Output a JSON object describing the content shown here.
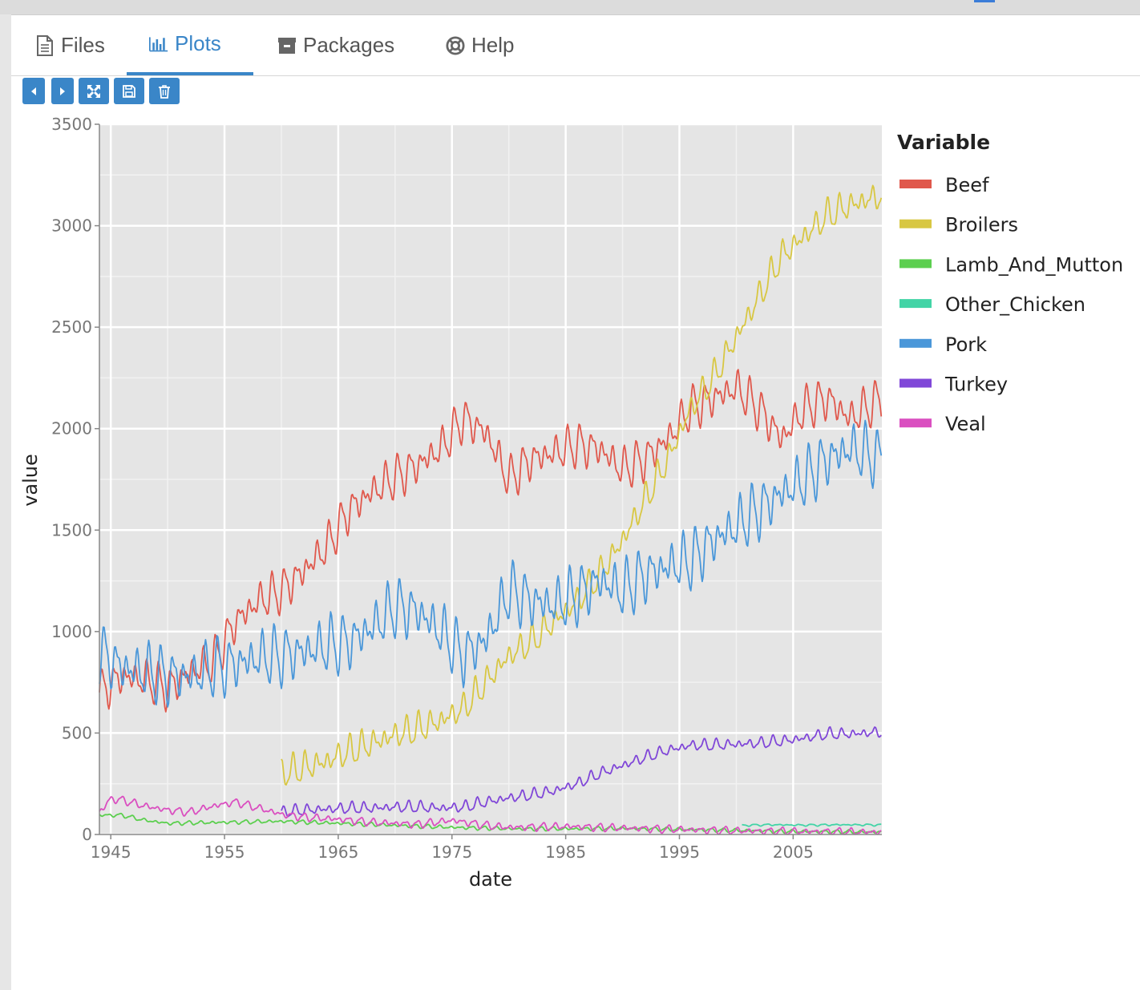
{
  "tabs": [
    {
      "label": "Files",
      "icon": "file-icon",
      "active": false
    },
    {
      "label": "Plots",
      "icon": "bar-chart-icon",
      "active": true
    },
    {
      "label": "Packages",
      "icon": "package-icon",
      "active": false
    },
    {
      "label": "Help",
      "icon": "lifebuoy-icon",
      "active": false
    }
  ],
  "toolbar": {
    "buttons": [
      "previous-plot",
      "next-plot",
      "zoom-expand",
      "save-plot",
      "delete-plot"
    ]
  },
  "colors": {
    "accent": "#3a86c8",
    "panel_bg": "#e5e5e5",
    "grid": "#ffffff"
  },
  "chart_data": {
    "type": "line",
    "xlabel": "date",
    "ylabel": "value",
    "legend_title": "Variable",
    "legend_position": "right",
    "grid": true,
    "x_ticks": [
      "1945",
      "1955",
      "1965",
      "1975",
      "1985",
      "1995",
      "2005"
    ],
    "y_ticks": [
      "0",
      "500",
      "1000",
      "1500",
      "2000",
      "2500",
      "3000",
      "3500"
    ],
    "xlim": [
      1944,
      2012.8
    ],
    "ylim": [
      0,
      3500
    ],
    "series": [
      {
        "name": "Beef",
        "color": "#e0584c",
        "x": [
          1944,
          1946,
          1948,
          1950,
          1952,
          1954,
          1956,
          1958,
          1960,
          1962,
          1964,
          1966,
          1968,
          1970,
          1972,
          1974,
          1976,
          1978,
          1980,
          1982,
          1984,
          1986,
          1988,
          1990,
          1992,
          1994,
          1996,
          1998,
          2000,
          2002,
          2004,
          2006,
          2008,
          2010,
          2012.8
        ],
        "values": [
          700,
          780,
          760,
          720,
          800,
          850,
          1050,
          1150,
          1200,
          1300,
          1420,
          1600,
          1690,
          1760,
          1820,
          1900,
          2050,
          1980,
          1750,
          1850,
          1880,
          1920,
          1900,
          1800,
          1850,
          1950,
          2100,
          2150,
          2200,
          2100,
          1950,
          2100,
          2150,
          2050,
          2150
        ],
        "amplitude": 110
      },
      {
        "name": "Broilers",
        "color": "#d8c742",
        "x": [
          1960,
          1962,
          1964,
          1966,
          1968,
          1970,
          1972,
          1974,
          1976,
          1978,
          1980,
          1982,
          1984,
          1986,
          1988,
          1990,
          1992,
          1994,
          1996,
          1998,
          2000,
          2002,
          2004,
          2006,
          2008,
          2010,
          2012.8
        ],
        "values": [
          300,
          330,
          360,
          410,
          450,
          490,
          520,
          560,
          620,
          750,
          880,
          950,
          1050,
          1150,
          1280,
          1450,
          1650,
          1850,
          2100,
          2250,
          2450,
          2650,
          2850,
          2950,
          3050,
          3100,
          3150
        ],
        "amplitude": 80
      },
      {
        "name": "Lamb_And_Mutton",
        "color": "#5ccf4f",
        "x": [
          1944,
          1946,
          1948,
          1950,
          1955,
          1960,
          1965,
          1970,
          1975,
          1980,
          1985,
          1990,
          1995,
          2000,
          2005,
          2010,
          2012.8
        ],
        "values": [
          95,
          95,
          70,
          55,
          60,
          65,
          55,
          45,
          35,
          28,
          28,
          30,
          25,
          20,
          15,
          13,
          12
        ],
        "amplitude": 10
      },
      {
        "name": "Other_Chicken",
        "color": "#42d4a6",
        "x": [
          2000.5,
          2003,
          2006,
          2009,
          2012.8
        ],
        "values": [
          45,
          48,
          46,
          48,
          47
        ],
        "amplitude": 5
      },
      {
        "name": "Pork",
        "color": "#4a97d9",
        "x": [
          1944,
          1946,
          1948,
          1950,
          1952,
          1954,
          1956,
          1958,
          1960,
          1962,
          1964,
          1966,
          1968,
          1970,
          1972,
          1974,
          1976,
          1978,
          1980,
          1982,
          1984,
          1986,
          1988,
          1990,
          1992,
          1994,
          1996,
          1998,
          2000,
          2002,
          2004,
          2006,
          2008,
          2010,
          2012.8
        ],
        "values": [
          900,
          820,
          800,
          780,
          780,
          820,
          840,
          870,
          880,
          900,
          930,
          950,
          1020,
          1120,
          1100,
          1000,
          880,
          960,
          1200,
          1150,
          1130,
          1180,
          1250,
          1200,
          1280,
          1320,
          1350,
          1450,
          1520,
          1600,
          1680,
          1750,
          1850,
          1900,
          1850
        ],
        "amplitude": 150
      },
      {
        "name": "Turkey",
        "color": "#8047d8",
        "x": [
          1960,
          1962,
          1964,
          1966,
          1968,
          1970,
          1972,
          1974,
          1976,
          1978,
          1980,
          1982,
          1984,
          1986,
          1988,
          1990,
          1992,
          1994,
          1996,
          1998,
          2000,
          2002,
          2004,
          2006,
          2008,
          2010,
          2012.8
        ],
        "values": [
          110,
          120,
          125,
          130,
          130,
          135,
          135,
          130,
          135,
          160,
          180,
          195,
          215,
          250,
          300,
          340,
          380,
          415,
          440,
          440,
          445,
          450,
          460,
          475,
          495,
          495,
          505
        ],
        "amplitude": 30
      },
      {
        "name": "Veal",
        "color": "#da4fc0",
        "x": [
          1944,
          1945,
          1946,
          1948,
          1950,
          1952,
          1954,
          1956,
          1958,
          1960,
          1962,
          1965,
          1968,
          1970,
          1972,
          1975,
          1978,
          1980,
          1985,
          1990,
          1995,
          2000,
          2005,
          2010,
          2012.8
        ],
        "values": [
          110,
          175,
          170,
          140,
          120,
          110,
          140,
          160,
          130,
          100,
          85,
          75,
          60,
          55,
          50,
          70,
          45,
          35,
          40,
          32,
          25,
          18,
          15,
          13,
          12
        ],
        "amplitude": 20
      }
    ]
  }
}
